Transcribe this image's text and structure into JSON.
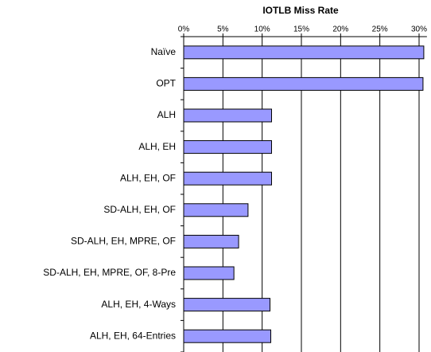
{
  "chart_data": {
    "type": "hbar",
    "title": "IOTLB Miss Rate",
    "categories": [
      "Naïve",
      "OPT",
      "ALH",
      "ALH, EH",
      "ALH, EH, OF",
      "SD-ALH, EH, OF",
      "SD-ALH, EH, MPRE, OF",
      "SD-ALH, EH, MPRE, OF, 8-Pre",
      "ALH, EH, 4-Ways",
      "ALH, EH, 64-Entries"
    ],
    "values": [
      30.6,
      30.5,
      11.2,
      11.2,
      11.2,
      8.2,
      7.0,
      6.4,
      11.0,
      11.1
    ],
    "color": "#9999ff",
    "xlim": [
      0,
      31
    ],
    "xticks": [
      {
        "value": 0,
        "label": "0%"
      },
      {
        "value": 5,
        "label": "5%"
      },
      {
        "value": 10,
        "label": "10%"
      },
      {
        "value": 15,
        "label": "15%"
      },
      {
        "value": 20,
        "label": "20%"
      },
      {
        "value": 25,
        "label": "25%"
      },
      {
        "value": 30,
        "label": "30%"
      }
    ],
    "grid": true
  }
}
